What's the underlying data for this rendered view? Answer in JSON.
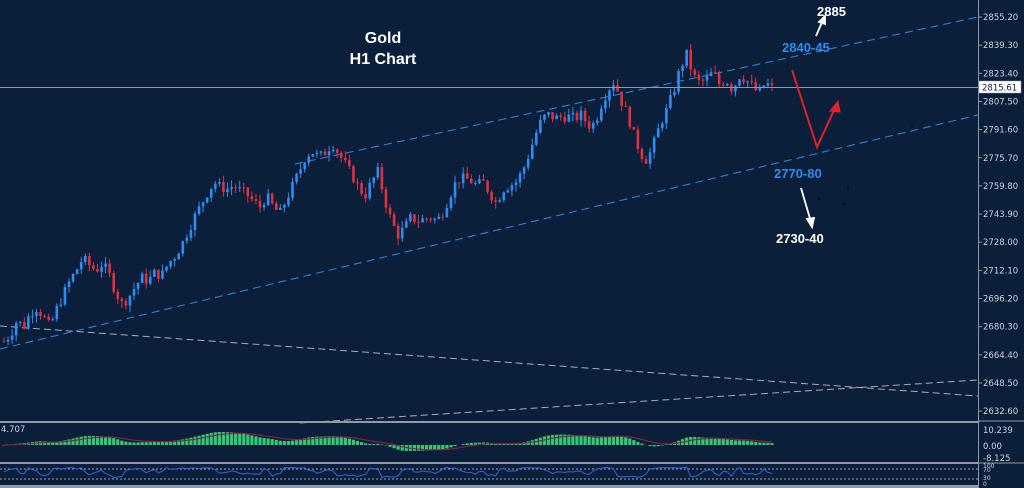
{
  "chart_data": {
    "type": "candlestick",
    "title": "Gold",
    "subtitle": "H1  Chart",
    "instrument": "Gold",
    "timeframe": "H1",
    "current_price": "2815.61",
    "ylim": [
      2625,
      2862
    ],
    "y_ticks": [
      "2855.20",
      "2839.30",
      "2823.40",
      "2807.50",
      "2791.60",
      "2775.70",
      "2759.80",
      "2743.90",
      "2728.00",
      "2712.10",
      "2696.20",
      "2680.30",
      "2664.40",
      "2648.50",
      "2632.60"
    ],
    "price_path_estimated": [
      2672,
      2676,
      2684,
      2680,
      2688,
      2691,
      2686,
      2680,
      2690,
      2698,
      2706,
      2712,
      2719,
      2715,
      2712,
      2716,
      2710,
      2700,
      2693,
      2697,
      2703,
      2708,
      2706,
      2711,
      2709,
      2716,
      2720,
      2726,
      2734,
      2742,
      2749,
      2756,
      2762,
      2759,
      2758,
      2760,
      2757,
      2755,
      2751,
      2748,
      2754,
      2748,
      2744,
      2752,
      2760,
      2768,
      2777,
      2779,
      2776,
      2779,
      2784,
      2778,
      2772,
      2766,
      2759,
      2754,
      2762,
      2768,
      2752,
      2740,
      2732,
      2736,
      2742,
      2740,
      2741,
      2742,
      2740,
      2746,
      2755,
      2763,
      2764,
      2763,
      2760,
      2762,
      2756,
      2750,
      2758,
      2760,
      2762,
      2768,
      2778,
      2789,
      2798,
      2800,
      2798,
      2799,
      2799,
      2798,
      2800,
      2794,
      2795,
      2806,
      2814,
      2819,
      2808,
      2800,
      2788,
      2778,
      2774,
      2784,
      2795,
      2803,
      2813,
      2826,
      2834,
      2822,
      2818,
      2820,
      2824,
      2817,
      2820,
      2814,
      2822,
      2820,
      2816,
      2812,
      2818,
      2815
    ],
    "annotations": [
      {
        "text": "2885",
        "color": "#ffffff",
        "note": "upside target, arrow pointing up"
      },
      {
        "text": "2840-45",
        "color": "#2f8cf0",
        "note": "resistance zone at upper channel line"
      },
      {
        "text": "2770-80",
        "color": "#2f8cf0",
        "note": "support zone at lower channel line"
      },
      {
        "text": "2730-40",
        "color": "#ffffff",
        "note": "downside target, arrow pointing down"
      }
    ],
    "scenario_arrow": {
      "color": "#e0202a",
      "path": "down to lower channel then rebound up"
    },
    "channel": {
      "style": "dashed",
      "color": "#2f7fd6",
      "lines": [
        "upper channel",
        "lower channel"
      ]
    },
    "long_term_lines": {
      "style": "dashed",
      "color": "#c0c6cf",
      "count": 3
    },
    "indicators": [
      {
        "name": "MACD histogram",
        "value_label": "4.707",
        "axis_ticks": [
          "10.239",
          "0.00",
          "-8.125"
        ],
        "bar_color": "#2ecc71",
        "signal_color": "#8b2040"
      },
      {
        "name": "Oscillator",
        "axis_ticks": [
          "100",
          "70",
          "30",
          "0"
        ],
        "line_color": "#2f5fcf"
      }
    ],
    "colors": {
      "background": "#0b1f3a",
      "bull_candle": "#2f8cf0",
      "bear_candle": "#e0303f",
      "axis_text": "#c9d3df"
    },
    "grid": false
  },
  "labels": {
    "title_line1": "Gold",
    "title_line2": "H1  Chart",
    "target_up": "2885",
    "resistance": "2840-45",
    "support": "2770-80",
    "target_down": "2730-40",
    "current_price": "2815.61",
    "macd_value": "4.707",
    "macd_ticks": [
      "10.239",
      "0.00",
      "-8.125"
    ],
    "osc_ticks": [
      "100",
      "70",
      "30",
      "0"
    ]
  }
}
